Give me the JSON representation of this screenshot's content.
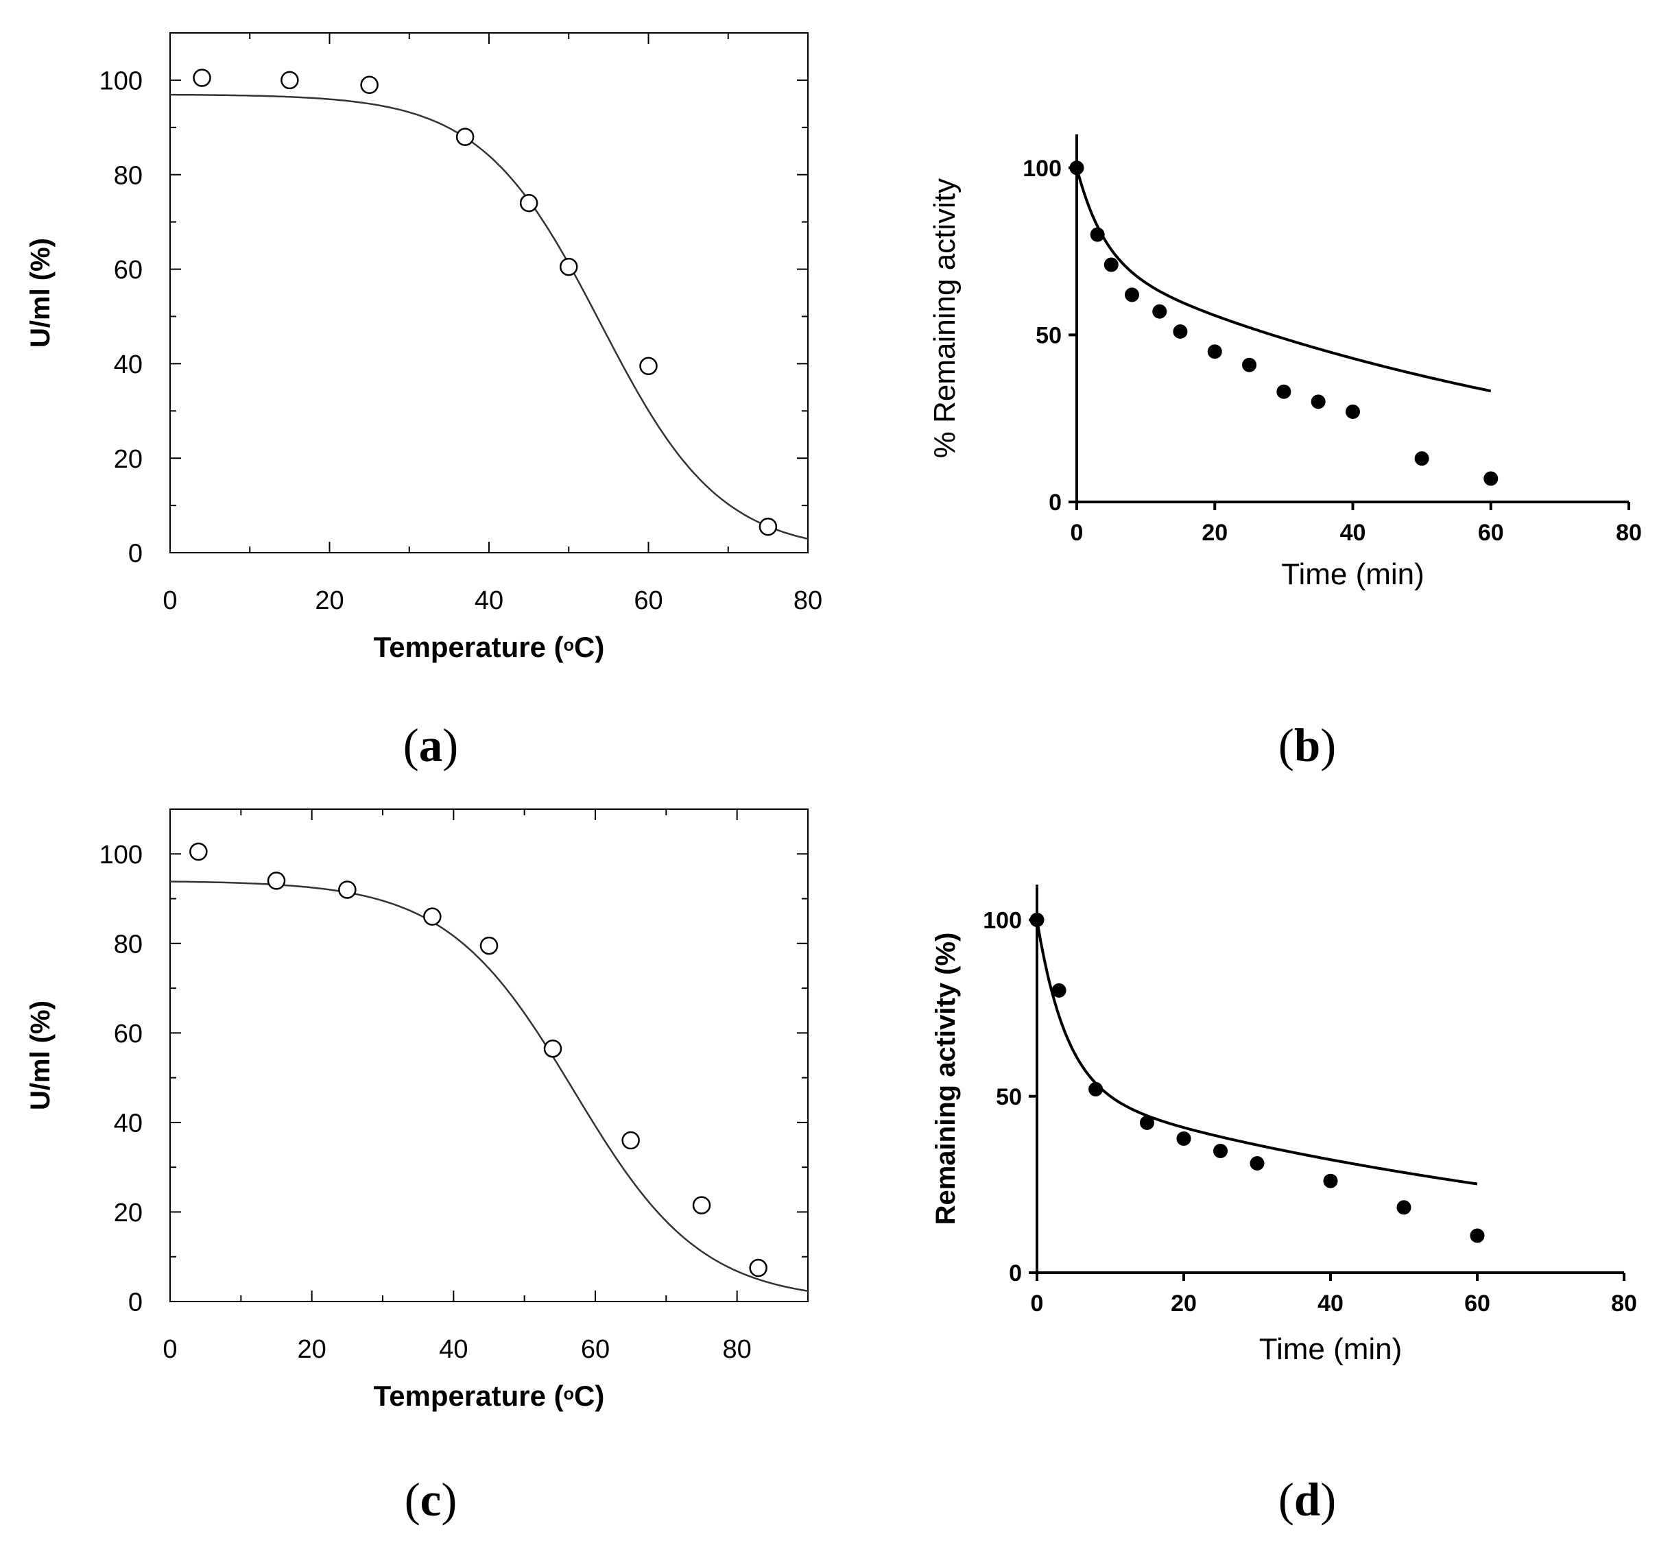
{
  "figure": {
    "background": "#ffffff",
    "ink": "#000000",
    "curve_color": "#333333"
  },
  "chart_data": [
    {
      "id": "a",
      "panel_label": "a",
      "type": "scatter",
      "style": "boxed",
      "marker": "open-circle",
      "xlabel": "Temperature",
      "xunit": "C",
      "ylabel": "U/ml (%)",
      "xlim": [
        0,
        80
      ],
      "ylim": [
        0,
        110
      ],
      "xticks": [
        0,
        20,
        40,
        60,
        80
      ],
      "xminor": [
        10,
        30,
        50,
        70
      ],
      "yticks": [
        0,
        20,
        40,
        60,
        80,
        100
      ],
      "yminor": [
        10,
        30,
        50,
        70,
        90
      ],
      "x": [
        4,
        15,
        25,
        37,
        45,
        50,
        60,
        75
      ],
      "y": [
        100.5,
        100,
        99,
        88,
        74,
        60.5,
        39.5,
        5.5
      ],
      "fit": {
        "kind": "sigmoid",
        "top": 97,
        "bottom": 0,
        "x50": 54,
        "slope": 7.5
      }
    },
    {
      "id": "b",
      "panel_label": "b",
      "type": "line",
      "style": "open",
      "marker": "filled-circle",
      "xlabel": "Time (min)",
      "ylabel": "% Remaining activity",
      "xlim": [
        0,
        80
      ],
      "ylim": [
        0,
        110
      ],
      "xticks": [
        0,
        20,
        40,
        60,
        80
      ],
      "yticks": [
        0,
        50,
        100
      ],
      "x": [
        0,
        3,
        5,
        8,
        12,
        15,
        20,
        25,
        30,
        35,
        40,
        50,
        60
      ],
      "y": [
        100,
        80,
        71,
        62,
        57,
        51,
        45,
        41,
        33,
        30,
        27,
        13,
        7
      ],
      "fit": {
        "kind": "biexp",
        "a": 28,
        "ka": 0.25,
        "b": 72,
        "c": 0.0129
      }
    },
    {
      "id": "c",
      "panel_label": "c",
      "type": "scatter",
      "style": "boxed",
      "marker": "open-circle",
      "xlabel": "Temperature",
      "xunit": "C",
      "ylabel": "U/ml (%)",
      "xlim": [
        0,
        90
      ],
      "ylim": [
        0,
        110
      ],
      "xticks": [
        0,
        20,
        40,
        60,
        80
      ],
      "xminor": [
        10,
        30,
        50,
        70,
        90
      ],
      "yticks": [
        0,
        20,
        40,
        60,
        80,
        100
      ],
      "yminor": [
        10,
        30,
        50,
        70,
        90
      ],
      "x": [
        4,
        15,
        25,
        37,
        45,
        54,
        65,
        75,
        83
      ],
      "y": [
        100.5,
        94,
        92,
        86,
        79.5,
        56.5,
        36,
        21.5,
        7.5
      ],
      "fit": {
        "kind": "sigmoid",
        "top": 94,
        "bottom": 0,
        "x50": 57,
        "slope": 9
      }
    },
    {
      "id": "d",
      "panel_label": "d",
      "type": "line",
      "style": "open",
      "marker": "filled-circle",
      "xlabel": "Time (min)",
      "ylabel": "Remaining activity (%)",
      "xlim": [
        0,
        80
      ],
      "ylim": [
        0,
        110
      ],
      "xticks": [
        0,
        20,
        40,
        60,
        80
      ],
      "yticks": [
        0,
        50,
        100
      ],
      "x": [
        0,
        3,
        8,
        15,
        20,
        25,
        30,
        40,
        50,
        60
      ],
      "y": [
        100,
        80,
        52,
        42.5,
        38,
        34.5,
        31,
        26,
        18.5,
        10.5
      ],
      "fit": {
        "kind": "biexp",
        "a": 48,
        "ka": 0.25,
        "b": 52,
        "c": 0.0121
      }
    }
  ]
}
